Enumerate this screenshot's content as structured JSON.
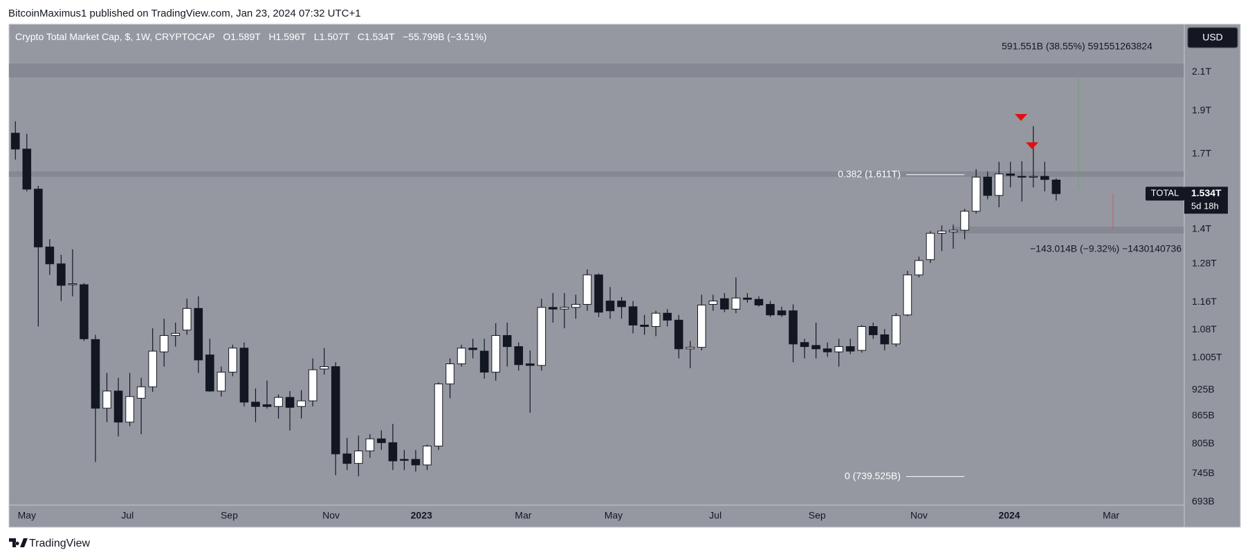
{
  "publisher": "BitcoinMaximus1 published on TradingView.com, Jan 23, 2024 07:32 UTC+1",
  "brand": "TradingView",
  "chart_data": {
    "type": "candlestick",
    "title": "Crypto Total Market Cap, $, 1W, CRYPTOCAP",
    "ohlc_header": [
      "O1.589T",
      "H1.596T",
      "L1.507T",
      "C1.534T"
    ],
    "change": "−55.799B (−3.51%)",
    "currency": "USD",
    "symbol": "TOTAL",
    "countdown": "5d 18h",
    "last_price": {
      "value": 1534,
      "label": "1.534T"
    },
    "log_scale": true,
    "grid": false,
    "background": "#9598a1",
    "up_color": "#ffffff",
    "down_color": "#131722",
    "border_color": "#131722",
    "ylim": [
      687,
      2375
    ],
    "yticks": [
      {
        "value": 2100,
        "label": "2.1T"
      },
      {
        "value": 1900,
        "label": "1.9T"
      },
      {
        "value": 1700,
        "label": "1.7T"
      },
      {
        "value": 1400,
        "label": "1.4T"
      },
      {
        "value": 1280,
        "label": "1.28T"
      },
      {
        "value": 1160,
        "label": "1.16T"
      },
      {
        "value": 1080,
        "label": "1.08T"
      },
      {
        "value": 1005,
        "label": "1.005T"
      },
      {
        "value": 925,
        "label": "925B"
      },
      {
        "value": 865,
        "label": "865B"
      },
      {
        "value": 805,
        "label": "805B"
      },
      {
        "value": 745,
        "label": "745B"
      },
      {
        "value": 693,
        "label": "693B"
      }
    ],
    "xlim": [
      -0.56,
      102.2
    ],
    "xticks": [
      {
        "value": 1,
        "label": "May"
      },
      {
        "value": 9.8,
        "label": "Jul"
      },
      {
        "value": 18.7,
        "label": "Sep"
      },
      {
        "value": 27.6,
        "label": "Nov"
      },
      {
        "value": 35.5,
        "label": "2023"
      },
      {
        "value": 44.4,
        "label": "Mar"
      },
      {
        "value": 52.3,
        "label": "May"
      },
      {
        "value": 61.2,
        "label": "Jul"
      },
      {
        "value": 70.1,
        "label": "Sep"
      },
      {
        "value": 79,
        "label": "Nov"
      },
      {
        "value": 86.9,
        "label": "2024"
      },
      {
        "value": 95.8,
        "label": "Mar"
      }
    ],
    "fib_levels": [
      {
        "value": 1611,
        "label": "0.382 (1.611T)"
      },
      {
        "value": 739.525,
        "label": "0 (739.525B)"
      }
    ],
    "measures": [
      "591.551B (38.55%) 591551263824",
      "−143.014B (−9.32%) −1430140736"
    ],
    "ohlc": [
      [
        1793,
        1849,
        1675,
        1721
      ],
      [
        1721,
        1790,
        1543,
        1552
      ],
      [
        1552,
        1565,
        1089,
        1337
      ],
      [
        1337,
        1364,
        1244,
        1280
      ],
      [
        1280,
        1310,
        1163,
        1211
      ],
      [
        1213,
        1329,
        1177,
        1216
      ],
      [
        1213,
        1218,
        1049,
        1055
      ],
      [
        1053,
        1066,
        768,
        882
      ],
      [
        882,
        966,
        851,
        922
      ],
      [
        922,
        954,
        820,
        851
      ],
      [
        851,
        966,
        842,
        909
      ],
      [
        905,
        954,
        825,
        932
      ],
      [
        932,
        1084,
        920,
        1022
      ],
      [
        1020,
        1111,
        982,
        1064
      ],
      [
        1064,
        1100,
        1034,
        1070
      ],
      [
        1079,
        1170,
        1066,
        1141
      ],
      [
        1141,
        1177,
        966,
        999
      ],
      [
        1012,
        1055,
        920,
        922
      ],
      [
        922,
        982,
        909,
        968
      ],
      [
        968,
        1039,
        958,
        1030
      ],
      [
        1030,
        1045,
        886,
        896
      ],
      [
        896,
        928,
        851,
        886
      ],
      [
        890,
        947,
        881,
        886
      ],
      [
        886,
        914,
        859,
        907
      ],
      [
        907,
        922,
        833,
        884
      ],
      [
        886,
        924,
        859,
        899
      ],
      [
        899,
        1003,
        886,
        974
      ],
      [
        976,
        1030,
        962,
        982
      ],
      [
        982,
        993,
        742,
        784
      ],
      [
        784,
        817,
        752,
        765
      ],
      [
        765,
        822,
        740,
        790
      ],
      [
        790,
        825,
        776,
        815
      ],
      [
        815,
        833,
        792,
        807
      ],
      [
        807,
        847,
        752,
        770
      ],
      [
        773,
        792,
        752,
        771
      ],
      [
        773,
        792,
        749,
        762
      ],
      [
        762,
        803,
        752,
        800
      ],
      [
        800,
        943,
        792,
        939
      ],
      [
        939,
        1003,
        905,
        989
      ],
      [
        989,
        1039,
        982,
        1030
      ],
      [
        1030,
        1055,
        1003,
        1026
      ],
      [
        1022,
        1055,
        952,
        968
      ],
      [
        968,
        1098,
        947,
        1064
      ],
      [
        1064,
        1100,
        982,
        1034
      ],
      [
        1034,
        1045,
        972,
        987
      ],
      [
        989,
        1024,
        872,
        985
      ],
      [
        985,
        1170,
        972,
        1144
      ],
      [
        1144,
        1187,
        1100,
        1139
      ],
      [
        1139,
        1187,
        1084,
        1144
      ],
      [
        1144,
        1182,
        1111,
        1153
      ],
      [
        1153,
        1262,
        1134,
        1244
      ],
      [
        1244,
        1249,
        1116,
        1130
      ],
      [
        1163,
        1206,
        1111,
        1134
      ],
      [
        1163,
        1175,
        1111,
        1146
      ],
      [
        1146,
        1163,
        1070,
        1093
      ],
      [
        1093,
        1122,
        1066,
        1089
      ],
      [
        1089,
        1134,
        1062,
        1127
      ],
      [
        1127,
        1139,
        1089,
        1107
      ],
      [
        1107,
        1122,
        1003,
        1028
      ],
      [
        1028,
        1049,
        978,
        1032
      ],
      [
        1032,
        1182,
        1024,
        1151
      ],
      [
        1153,
        1182,
        1134,
        1163
      ],
      [
        1170,
        1187,
        1130,
        1139
      ],
      [
        1139,
        1236,
        1127,
        1172
      ],
      [
        1172,
        1187,
        1158,
        1168
      ],
      [
        1168,
        1177,
        1146,
        1151
      ],
      [
        1153,
        1163,
        1116,
        1122
      ],
      [
        1134,
        1146,
        1116,
        1122
      ],
      [
        1134,
        1153,
        993,
        1041
      ],
      [
        1045,
        1055,
        1003,
        1034
      ],
      [
        1037,
        1100,
        1003,
        1028
      ],
      [
        1028,
        1045,
        1007,
        1020
      ],
      [
        1020,
        1055,
        982,
        1034
      ],
      [
        1034,
        1055,
        1014,
        1022
      ],
      [
        1024,
        1093,
        1018,
        1089
      ],
      [
        1089,
        1100,
        1055,
        1066
      ],
      [
        1066,
        1082,
        1024,
        1041
      ],
      [
        1041,
        1127,
        1034,
        1120
      ],
      [
        1122,
        1257,
        1118,
        1244
      ],
      [
        1244,
        1304,
        1236,
        1291
      ],
      [
        1294,
        1393,
        1283,
        1385
      ],
      [
        1385,
        1413,
        1323,
        1393
      ],
      [
        1390,
        1416,
        1331,
        1396
      ],
      [
        1396,
        1475,
        1364,
        1466
      ],
      [
        1466,
        1634,
        1457,
        1601
      ],
      [
        1601,
        1624,
        1512,
        1527
      ],
      [
        1527,
        1665,
        1481,
        1614
      ],
      [
        1614,
        1665,
        1559,
        1608
      ],
      [
        1604,
        1668,
        1503,
        1601
      ],
      [
        1601,
        1826,
        1559,
        1604
      ],
      [
        1604,
        1665,
        1543,
        1591
      ],
      [
        1589,
        1596,
        1507,
        1534
      ]
    ]
  }
}
